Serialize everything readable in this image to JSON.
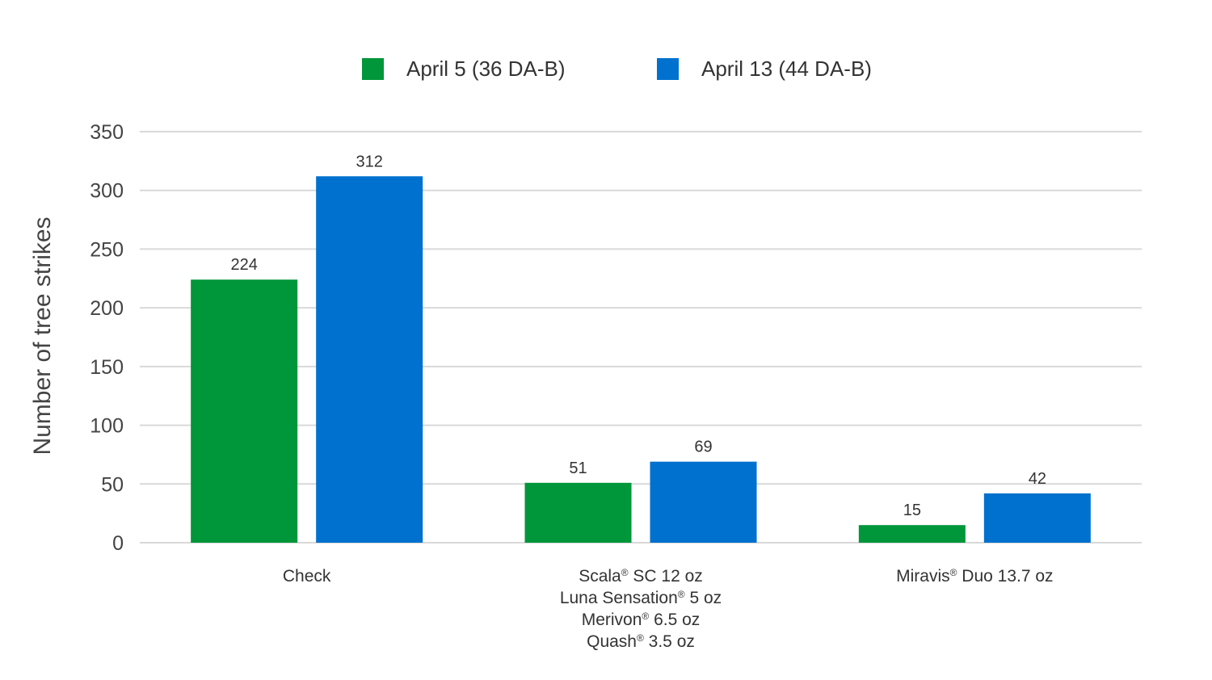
{
  "chart_data": {
    "type": "bar",
    "title": "",
    "xlabel": "",
    "ylabel": "Number of tree strikes",
    "ylim": [
      0,
      350
    ],
    "yticks": [
      0,
      50,
      100,
      150,
      200,
      250,
      300,
      350
    ],
    "grid": true,
    "legend_position": "top-center",
    "categories": [
      {
        "id": "check",
        "lines": [
          [
            {
              "text": "Check"
            }
          ]
        ]
      },
      {
        "id": "scala-luna-merivon-quash",
        "lines": [
          [
            {
              "text": "Scala"
            },
            {
              "text": "®",
              "sup": true
            },
            {
              "text": " SC 12 oz"
            }
          ],
          [
            {
              "text": "Luna Sensation"
            },
            {
              "text": "®",
              "sup": true
            },
            {
              "text": " 5 oz"
            }
          ],
          [
            {
              "text": "Merivon"
            },
            {
              "text": "®",
              "sup": true
            },
            {
              "text": " 6.5 oz"
            }
          ],
          [
            {
              "text": "Quash"
            },
            {
              "text": "®",
              "sup": true
            },
            {
              "text": " 3.5 oz"
            }
          ]
        ]
      },
      {
        "id": "miravis-duo",
        "lines": [
          [
            {
              "text": "Miravis"
            },
            {
              "text": "®",
              "sup": true
            },
            {
              "text": " Duo 13.7 oz"
            }
          ]
        ]
      }
    ],
    "series": [
      {
        "name": "April 5 (36 DA-B)",
        "color": "#00963a",
        "values": [
          224,
          51,
          15
        ]
      },
      {
        "name": "April 13 (44 DA-B)",
        "color": "#0071ce",
        "values": [
          312,
          69,
          42
        ]
      }
    ],
    "colors": {
      "grid": "#d9d9d9",
      "text": "#333333"
    }
  }
}
